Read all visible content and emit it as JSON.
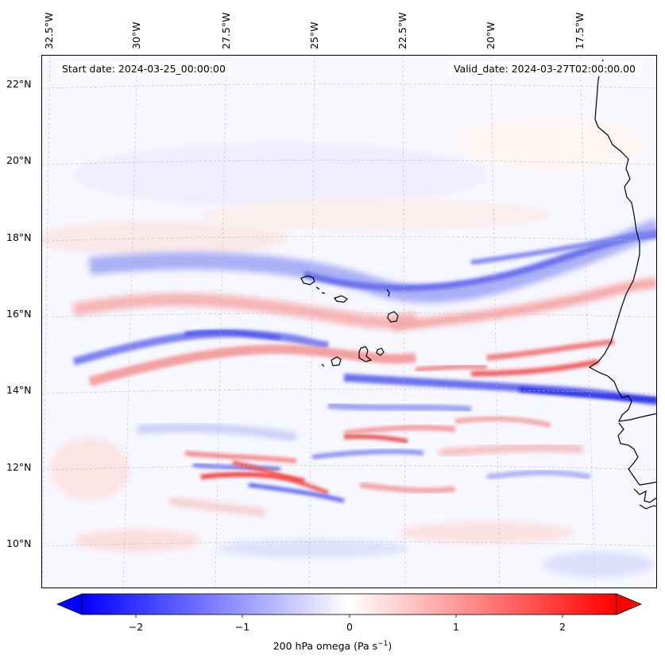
{
  "map": {
    "title_left": "Start date: 2024-03-25_00:00:00",
    "title_right": "Valid_date: 2024-03-27T02:00:00.00",
    "lon_labels": [
      "32.5°W",
      "30°W",
      "27.5°W",
      "25°W",
      "22.5°W",
      "20°W",
      "17.5°W"
    ],
    "lat_labels": [
      "22°N",
      "20°N",
      "18°N",
      "16°N",
      "14°N",
      "12°N",
      "10°N"
    ],
    "land_features": [
      "west-african-coastline",
      "cape-verde-islands"
    ]
  },
  "colorbar": {
    "label_prefix": "200 hPa omega (Pa s",
    "label_exp": "−1",
    "label_suffix": ")",
    "ticks": [
      "−2",
      "−1",
      "0",
      "1",
      "2"
    ],
    "range": [
      -2.75,
      2.75
    ],
    "extend": "both",
    "colors": {
      "low": "#0000ff",
      "mid": "#ffffff",
      "high": "#ff0000"
    }
  }
}
